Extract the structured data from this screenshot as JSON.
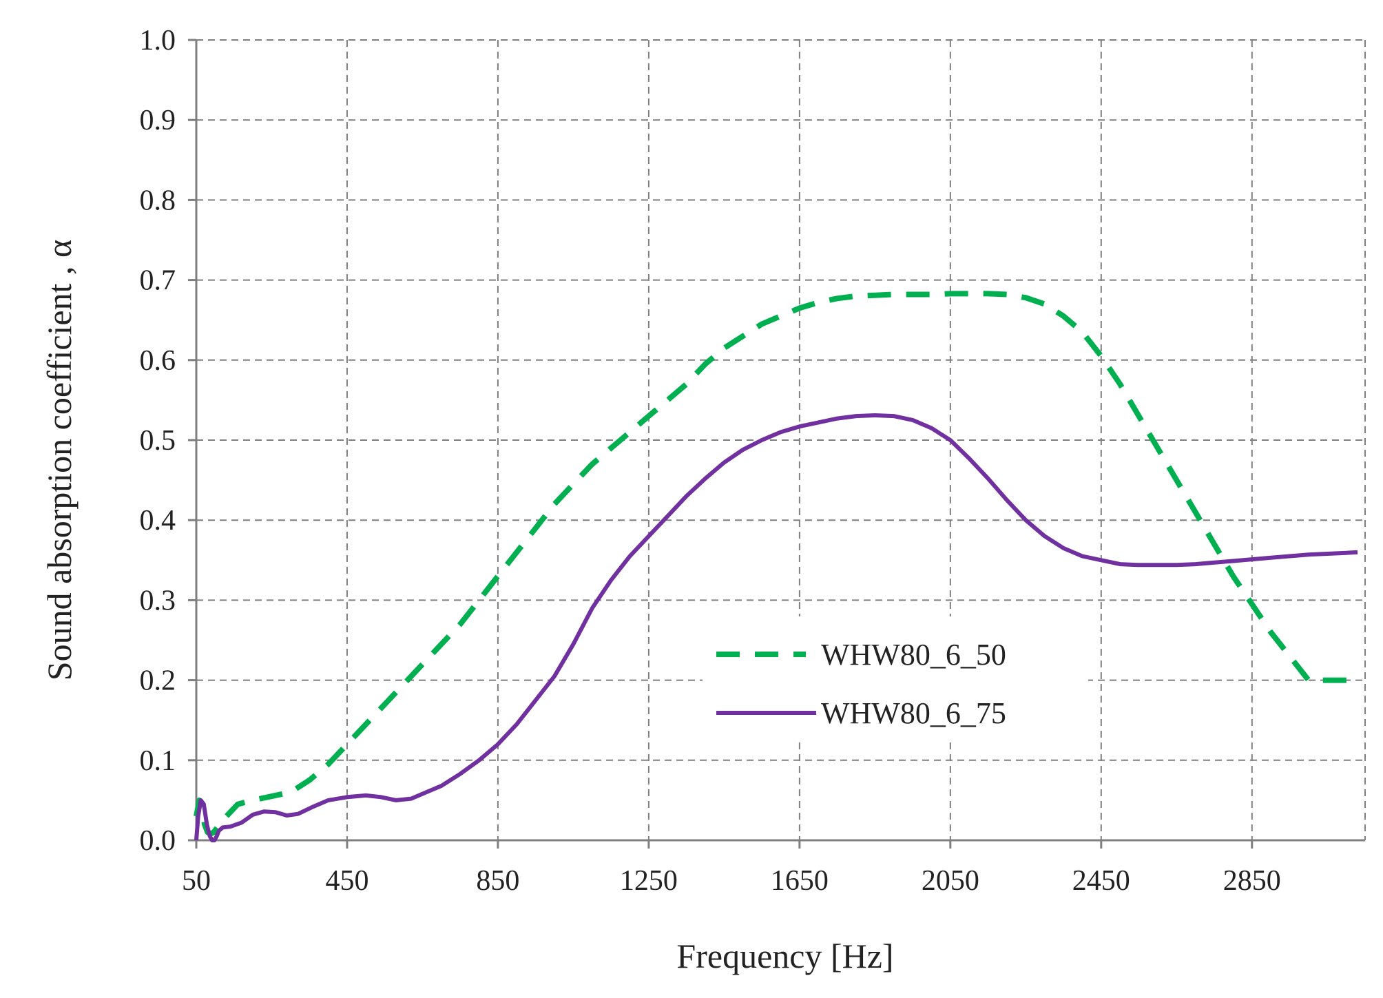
{
  "chart_data": {
    "type": "line",
    "title": "",
    "xlabel": "Frequency [Hz]",
    "ylabel": "Sound absorption coefficient , α",
    "xlim": [
      50,
      3150
    ],
    "ylim": [
      0,
      1.0
    ],
    "x_ticks": [
      50,
      450,
      850,
      1250,
      1650,
      2050,
      2450,
      2850
    ],
    "x_tick_labels": [
      "50",
      "450",
      "850",
      "1250",
      "1650",
      "2050",
      "2450",
      "2850"
    ],
    "x_gridlines": [
      50,
      450,
      850,
      1250,
      1650,
      2050,
      2450,
      2850,
      3150
    ],
    "y_ticks": [
      0,
      0.1,
      0.2,
      0.3,
      0.4,
      0.5,
      0.6,
      0.7,
      0.8,
      0.9,
      1.0
    ],
    "y_tick_labels": [
      "0.0",
      "0.1",
      "0.2",
      "0.3",
      "0.4",
      "0.5",
      "0.6",
      "0.7",
      "0.8",
      "0.9",
      "1.0"
    ],
    "grid": true,
    "legend_position": "center-right",
    "series": [
      {
        "name": "WHW80_6_50",
        "color": "#00b050",
        "style": "dashed",
        "x": [
          50,
          58,
          66,
          72,
          80,
          88,
          96,
          104,
          112,
          130,
          160,
          200,
          250,
          300,
          350,
          400,
          450,
          500,
          550,
          600,
          650,
          700,
          750,
          800,
          850,
          900,
          950,
          1000,
          1050,
          1100,
          1150,
          1200,
          1250,
          1300,
          1350,
          1400,
          1450,
          1500,
          1550,
          1600,
          1650,
          1700,
          1750,
          1800,
          1850,
          1900,
          1950,
          2000,
          2050,
          2100,
          2150,
          2200,
          2250,
          2300,
          2350,
          2400,
          2450,
          2500,
          2550,
          2600,
          2650,
          2700,
          2750,
          2800,
          2850,
          2900,
          2950,
          3000,
          3050,
          3100,
          3130
        ],
        "y": [
          0.03,
          0.05,
          0.04,
          0.02,
          0.01,
          0.008,
          0.01,
          0.015,
          0.02,
          0.03,
          0.045,
          0.05,
          0.055,
          0.06,
          0.075,
          0.095,
          0.12,
          0.145,
          0.17,
          0.195,
          0.22,
          0.245,
          0.27,
          0.3,
          0.33,
          0.36,
          0.39,
          0.42,
          0.445,
          0.47,
          0.49,
          0.51,
          0.53,
          0.55,
          0.57,
          0.595,
          0.615,
          0.63,
          0.645,
          0.655,
          0.665,
          0.672,
          0.677,
          0.68,
          0.681,
          0.682,
          0.682,
          0.682,
          0.683,
          0.683,
          0.683,
          0.682,
          0.678,
          0.67,
          0.655,
          0.635,
          0.605,
          0.57,
          0.53,
          0.49,
          0.45,
          0.41,
          0.37,
          0.33,
          0.295,
          0.26,
          0.23,
          0.2,
          0.2,
          0.2,
          0.2
        ]
      },
      {
        "name": "WHW80_6_75",
        "color": "#7030a0",
        "style": "solid",
        "x": [
          50,
          55,
          62,
          70,
          78,
          86,
          92,
          98,
          104,
          110,
          120,
          140,
          170,
          200,
          230,
          260,
          290,
          320,
          360,
          400,
          450,
          500,
          540,
          580,
          620,
          660,
          700,
          750,
          800,
          850,
          900,
          950,
          1000,
          1050,
          1100,
          1150,
          1200,
          1250,
          1300,
          1350,
          1400,
          1450,
          1500,
          1550,
          1600,
          1650,
          1700,
          1750,
          1800,
          1850,
          1900,
          1950,
          2000,
          2050,
          2100,
          2150,
          2200,
          2250,
          2300,
          2350,
          2400,
          2450,
          2500,
          2550,
          2600,
          2650,
          2700,
          2750,
          2800,
          2850,
          2900,
          2950,
          3000,
          3050,
          3100,
          3130
        ],
        "y": [
          0.0,
          0.03,
          0.05,
          0.045,
          0.02,
          0.005,
          0.0,
          0.0,
          0.005,
          0.012,
          0.016,
          0.017,
          0.022,
          0.032,
          0.036,
          0.035,
          0.031,
          0.033,
          0.042,
          0.05,
          0.054,
          0.056,
          0.054,
          0.05,
          0.052,
          0.06,
          0.068,
          0.083,
          0.1,
          0.12,
          0.145,
          0.175,
          0.205,
          0.245,
          0.29,
          0.325,
          0.355,
          0.38,
          0.405,
          0.43,
          0.452,
          0.472,
          0.488,
          0.5,
          0.51,
          0.517,
          0.522,
          0.527,
          0.53,
          0.531,
          0.53,
          0.525,
          0.515,
          0.5,
          0.477,
          0.452,
          0.425,
          0.4,
          0.38,
          0.365,
          0.355,
          0.35,
          0.345,
          0.344,
          0.344,
          0.344,
          0.345,
          0.347,
          0.349,
          0.351,
          0.353,
          0.355,
          0.357,
          0.358,
          0.359,
          0.36
        ]
      }
    ]
  }
}
